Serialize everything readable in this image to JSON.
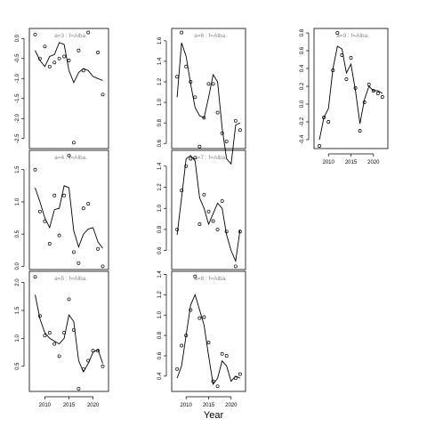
{
  "chart_data": {
    "type": "scatter",
    "xlabel": "Year",
    "panels": [
      {
        "label": "a=3  :  f=Alba.",
        "ylim": [
          -2.75,
          0.25
        ],
        "yticks": [
          0.0,
          -0.5,
          -1.0,
          -1.5,
          -2.0,
          -2.5
        ],
        "ytick_labels": [
          "0.0",
          "-0.5",
          "-1.0",
          "-1.5",
          "-2.0",
          "-2.5"
        ],
        "x": [
          2008,
          2009,
          2010,
          2011,
          2012,
          2013,
          2014,
          2015,
          2016,
          2017,
          2018,
          2019,
          2020,
          2021,
          2022
        ],
        "observed": [
          0.1,
          -0.5,
          -0.2,
          -0.7,
          -0.6,
          -0.5,
          -0.45,
          -0.55,
          -2.6,
          -0.3,
          -0.8,
          0.15,
          null,
          -0.35,
          -1.4
        ],
        "fitted": [
          -0.3,
          -0.55,
          -0.7,
          -0.45,
          -0.4,
          -0.1,
          -0.15,
          -0.8,
          -1.1,
          -0.85,
          -0.75,
          -0.8,
          -0.95,
          -1.0,
          -1.05
        ]
      },
      {
        "label": "a=6  :  f=Alba.",
        "ylim": [
          0.55,
          1.72
        ],
        "yticks": [
          0.6,
          0.8,
          1.0,
          1.2,
          1.4,
          1.6
        ],
        "ytick_labels": [
          "0.6",
          "0.8",
          "1.0",
          "1.2",
          "1.4",
          "1.6"
        ],
        "x": [
          2008,
          2009,
          2010,
          2011,
          2012,
          2013,
          2014,
          2015,
          2016,
          2017,
          2018,
          2019,
          2020,
          2021,
          2022
        ],
        "observed": [
          1.25,
          1.68,
          1.35,
          1.2,
          1.05,
          0.57,
          0.85,
          1.18,
          1.18,
          0.9,
          0.7,
          0.62,
          null,
          0.82,
          0.73
        ],
        "fitted": [
          1.05,
          1.58,
          1.45,
          1.18,
          0.95,
          0.87,
          0.85,
          1.05,
          1.27,
          1.2,
          0.75,
          0.45,
          0.4,
          0.78,
          0.8
        ]
      },
      {
        "label": "a=9  :  f=Alba.",
        "ylim": [
          -0.5,
          0.85
        ],
        "yticks": [
          -0.4,
          -0.2,
          0.0,
          0.2,
          0.4,
          0.6,
          0.8
        ],
        "ytick_labels": [
          "-0.4",
          "-0.2",
          "0.0",
          "0.2",
          "0.4",
          "0.6",
          "0.8"
        ],
        "xticks": [
          2010,
          2015,
          2020
        ],
        "x": [
          2008,
          2009,
          2010,
          2011,
          2012,
          2013,
          2014,
          2015,
          2016,
          2017,
          2018,
          2019,
          2020,
          2021,
          2022
        ],
        "observed": [
          -0.47,
          -0.15,
          -0.2,
          0.38,
          0.8,
          0.55,
          0.28,
          0.52,
          0.18,
          -0.3,
          0.02,
          0.22,
          0.15,
          0.12,
          0.08
        ],
        "fitted": [
          -0.4,
          -0.15,
          -0.05,
          0.4,
          0.65,
          0.62,
          0.35,
          0.45,
          0.15,
          -0.22,
          0.05,
          0.2,
          0.15,
          0.15,
          0.12
        ]
      },
      {
        "label": "a=4  :  f=Alba.",
        "ylim": [
          -0.05,
          1.8
        ],
        "yticks": [
          0.0,
          0.5,
          1.0,
          1.5
        ],
        "ytick_labels": [
          "0.0",
          "0.5",
          "1.0",
          "1.5"
        ],
        "x": [
          2008,
          2009,
          2010,
          2011,
          2012,
          2013,
          2014,
          2015,
          2016,
          2017,
          2018,
          2019,
          2020,
          2021,
          2022
        ],
        "observed": [
          1.5,
          0.85,
          0.7,
          0.35,
          1.1,
          0.48,
          1.1,
          1.72,
          0.22,
          0.05,
          0.9,
          0.97,
          null,
          0.27,
          0.0
        ],
        "fitted": [
          1.22,
          1.0,
          0.75,
          0.6,
          0.88,
          0.9,
          1.25,
          1.22,
          0.55,
          0.3,
          0.5,
          0.58,
          0.6,
          0.38,
          0.28
        ]
      },
      {
        "label": "a=7  :  f=Alba.",
        "ylim": [
          0.42,
          1.55
        ],
        "yticks": [
          0.6,
          0.8,
          1.0,
          1.2,
          1.4
        ],
        "ytick_labels": [
          "0.6",
          "0.8",
          "1.0",
          "1.2",
          "1.4"
        ],
        "x": [
          2008,
          2009,
          2010,
          2011,
          2012,
          2013,
          2014,
          2015,
          2016,
          2017,
          2018,
          2019,
          2020,
          2021,
          2022
        ],
        "observed": [
          0.8,
          1.17,
          1.4,
          1.47,
          1.48,
          0.85,
          1.13,
          0.97,
          0.88,
          0.8,
          1.07,
          0.78,
          null,
          0.45,
          0.78
        ],
        "fitted": [
          0.75,
          1.1,
          1.47,
          1.5,
          1.45,
          1.1,
          1.0,
          0.85,
          0.95,
          1.05,
          1.0,
          0.75,
          0.6,
          0.5,
          0.8
        ]
      },
      {
        "label": "a=5  :  f=Alba.",
        "ylim": [
          0.05,
          2.2
        ],
        "yticks": [
          0.5,
          1.0,
          1.5,
          2.0
        ],
        "ytick_labels": [
          "0.5",
          "1.0",
          "1.5",
          "2.0"
        ],
        "xticks": [
          2010,
          2015,
          2020
        ],
        "x": [
          2008,
          2009,
          2010,
          2011,
          2012,
          2013,
          2014,
          2015,
          2016,
          2017,
          2018,
          2019,
          2020,
          2021,
          2022
        ],
        "observed": [
          2.1,
          1.4,
          1.05,
          1.1,
          0.9,
          0.68,
          1.1,
          1.7,
          1.15,
          0.1,
          0.45,
          0.6,
          0.78,
          0.78,
          0.5
        ],
        "fitted": [
          1.78,
          1.35,
          1.1,
          1.0,
          0.95,
          0.9,
          1.0,
          1.42,
          1.3,
          0.6,
          0.4,
          0.55,
          0.75,
          0.8,
          0.55
        ]
      },
      {
        "label": "a=8  :  f=Alba.",
        "ylim": [
          0.25,
          1.43
        ],
        "yticks": [
          0.4,
          0.6,
          0.8,
          1.0,
          1.2,
          1.4
        ],
        "ytick_labels": [
          "0.4",
          "0.6",
          "0.8",
          "1.0",
          "1.2",
          "1.4"
        ],
        "xticks": [
          2010,
          2015,
          2020
        ],
        "x": [
          2008,
          2009,
          2010,
          2011,
          2012,
          2013,
          2014,
          2015,
          2016,
          2017,
          2018,
          2019,
          2020,
          2021,
          2022
        ],
        "observed": [
          0.47,
          0.7,
          0.8,
          1.05,
          1.38,
          0.97,
          0.98,
          0.73,
          0.35,
          0.3,
          0.62,
          0.6,
          null,
          0.38,
          0.42
        ],
        "fitted": [
          0.38,
          0.5,
          0.8,
          1.1,
          1.2,
          1.05,
          0.9,
          0.6,
          0.32,
          0.38,
          0.55,
          0.5,
          0.35,
          0.4,
          0.38
        ]
      }
    ]
  }
}
